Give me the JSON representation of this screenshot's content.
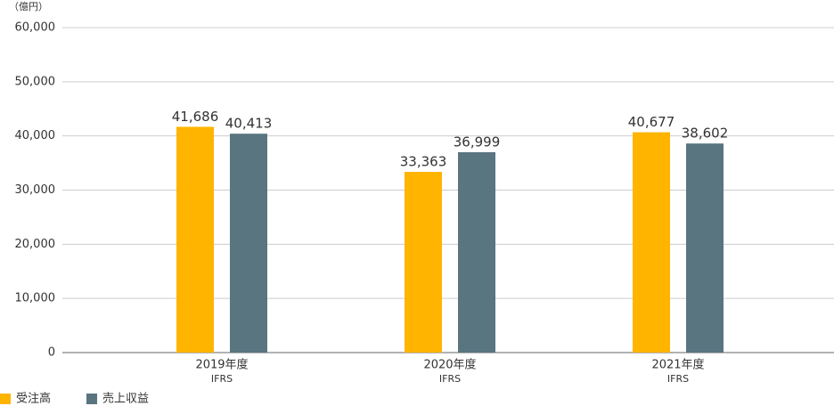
{
  "chart_data": {
    "type": "bar",
    "unit_label": "（億円）",
    "categories": [
      "2019年度",
      "2020年度",
      "2021年度"
    ],
    "category_notes": [
      "IFRS",
      "IFRS",
      "IFRS"
    ],
    "series": [
      {
        "name": "受注高",
        "color": "#ffb400",
        "values": [
          41686,
          33363,
          40677
        ],
        "value_labels": [
          "41,686",
          "33,363",
          "40,677"
        ]
      },
      {
        "name": "売上収益",
        "color": "#587580",
        "values": [
          40413,
          36999,
          38602
        ],
        "value_labels": [
          "40,413",
          "36,999",
          "38,602"
        ]
      }
    ],
    "ylim": [
      0,
      60000
    ],
    "yticks": [
      0,
      {
        "value": 10000,
        "label": "10,000"
      },
      {
        "value": 20000,
        "label": "20,000"
      },
      {
        "value": 30000,
        "label": "30,000"
      },
      {
        "value": 40000,
        "label": "40,000"
      },
      {
        "value": 50000,
        "label": "50,000"
      },
      {
        "value": 60000,
        "label": "60,000"
      }
    ],
    "grid": true
  }
}
